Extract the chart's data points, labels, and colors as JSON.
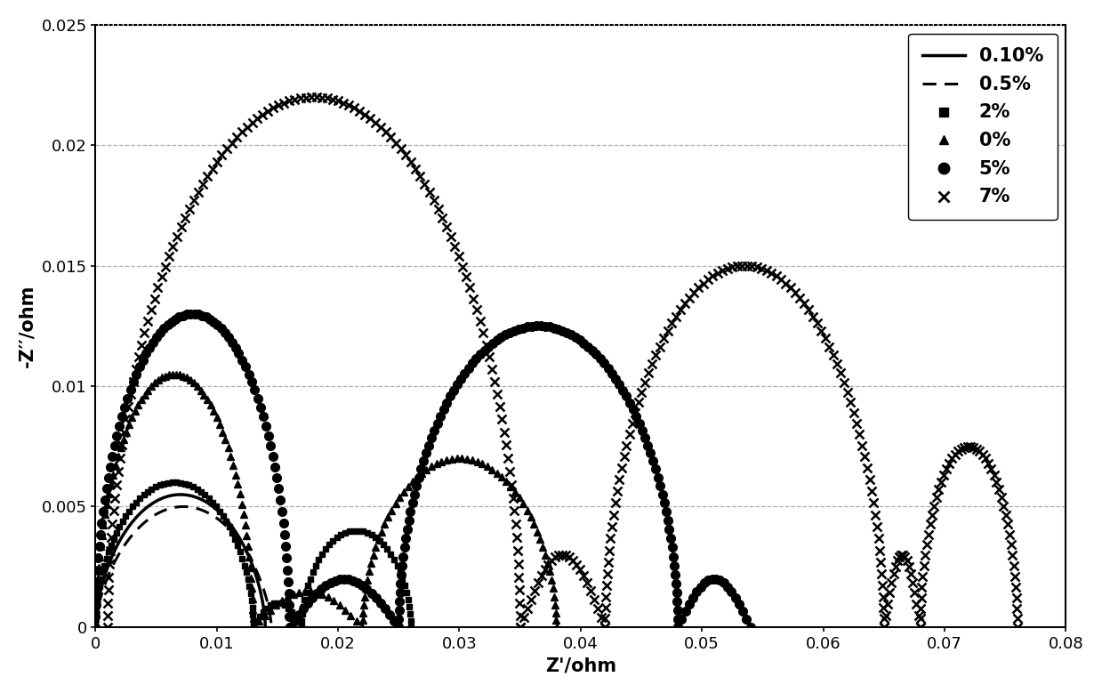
{
  "title": "",
  "xlabel": "Z'/ohm",
  "ylabel": "-Z′′/ohm",
  "xlim": [
    0,
    0.08
  ],
  "ylim": [
    0,
    0.025
  ],
  "xticks": [
    0,
    0.01,
    0.02,
    0.03,
    0.04,
    0.05,
    0.06,
    0.07,
    0.08
  ],
  "yticks": [
    0,
    0.005,
    0.01,
    0.015,
    0.02,
    0.025
  ],
  "grid_color": "#777777",
  "background_color": "#ffffff"
}
